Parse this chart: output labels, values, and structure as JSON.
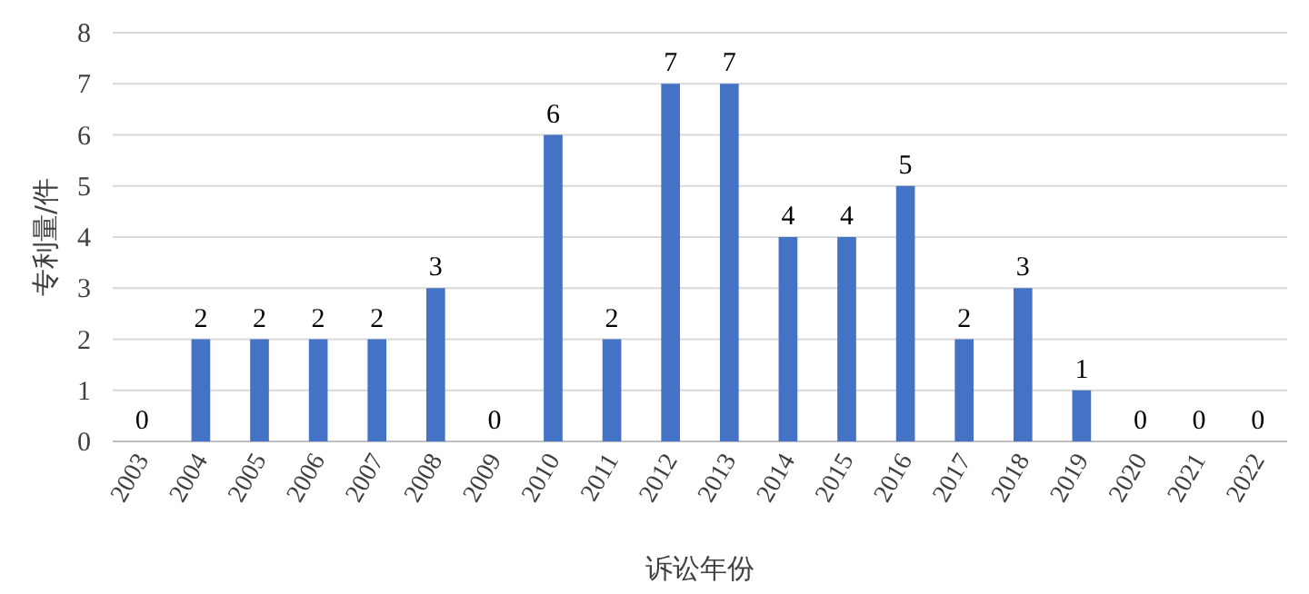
{
  "chart_data": {
    "type": "bar",
    "xlabel": "诉讼年份",
    "ylabel": "专利量/件",
    "categories": [
      "2003",
      "2004",
      "2005",
      "2006",
      "2007",
      "2008",
      "2009",
      "2010",
      "2011",
      "2012",
      "2013",
      "2014",
      "2015",
      "2016",
      "2017",
      "2018",
      "2019",
      "2020",
      "2021",
      "2022"
    ],
    "values": [
      0,
      2,
      2,
      2,
      2,
      3,
      0,
      6,
      2,
      7,
      7,
      4,
      4,
      5,
      2,
      3,
      1,
      0,
      0,
      0
    ],
    "color": "#4472c4",
    "ylim": [
      0,
      8
    ],
    "yticks": [
      0,
      1,
      2,
      3,
      4,
      5,
      6,
      7,
      8
    ],
    "grid": "y",
    "data_labels": true
  }
}
